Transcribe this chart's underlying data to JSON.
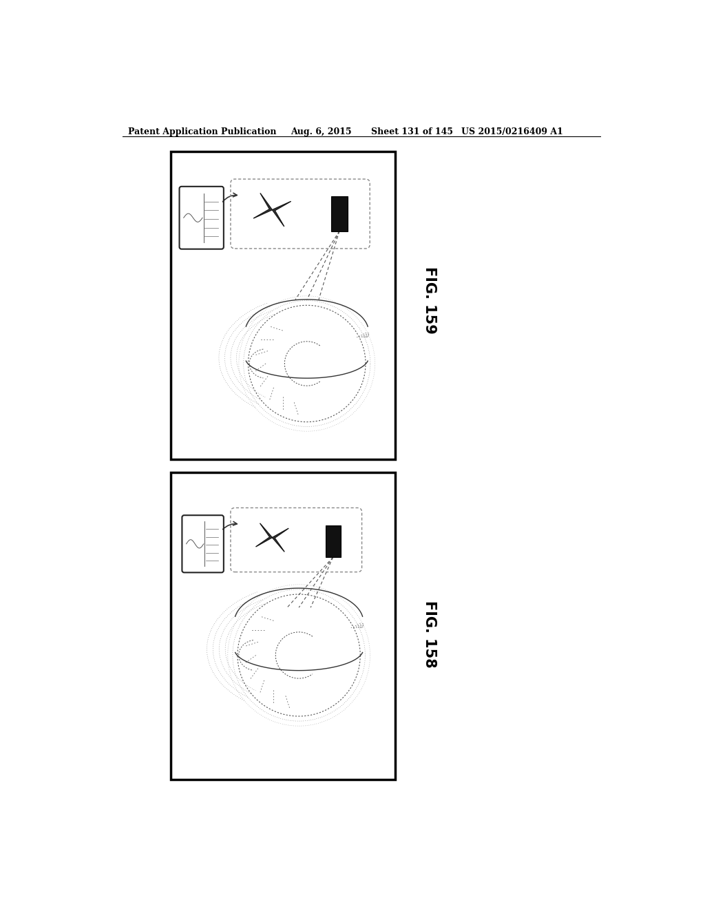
{
  "fig_width": 10.24,
  "fig_height": 13.2,
  "background_color": "#ffffff",
  "header_text": "Patent Application Publication",
  "header_date": "Aug. 6, 2015",
  "header_sheet": "Sheet 131 of 145",
  "header_patent": "US 2015/0216409 A1",
  "fig159_label": "FIG. 159",
  "fig158_label": "FIG. 158"
}
